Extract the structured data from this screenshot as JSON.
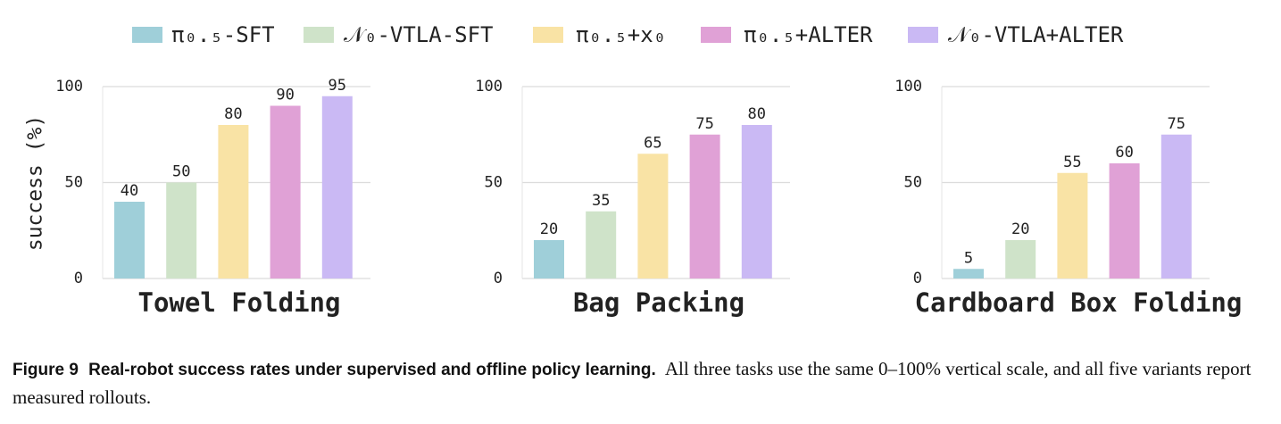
{
  "legend": [
    {
      "name": "π₀.₅-SFT",
      "color": "#9fcfd9"
    },
    {
      "name": "𝒩₀-VTLA-SFT",
      "color": "#cfe3c9"
    },
    {
      "name": "π₀.₅+x₀",
      "color": "#f9e3a5"
    },
    {
      "name": "π₀.₅+ALTER",
      "color": "#e0a1d6"
    },
    {
      "name": "𝒩₀-VTLA+ALTER",
      "color": "#cab9f4"
    }
  ],
  "chart_data": [
    {
      "type": "bar",
      "title": "Towel Folding",
      "ylabel": "success (%)",
      "values": [
        40,
        50,
        80,
        90,
        95
      ],
      "ylim": [
        0,
        100
      ],
      "yticks": [
        0,
        50,
        100
      ],
      "grid": true
    },
    {
      "type": "bar",
      "title": "Bag Packing",
      "values": [
        20,
        35,
        65,
        75,
        80
      ],
      "ylim": [
        0,
        100
      ],
      "yticks": [
        0,
        50,
        100
      ],
      "grid": true
    },
    {
      "type": "bar",
      "title": "Cardboard Box Folding",
      "values": [
        5,
        20,
        55,
        60,
        75
      ],
      "ylim": [
        0,
        100
      ],
      "yticks": [
        0,
        50,
        100
      ],
      "grid": true
    }
  ],
  "caption": {
    "label": "Figure 9",
    "title": "Real-robot success rates under supervised and offline policy learning.",
    "text": "All three tasks use the same 0–100% vertical scale, and all five variants report measured rollouts."
  }
}
